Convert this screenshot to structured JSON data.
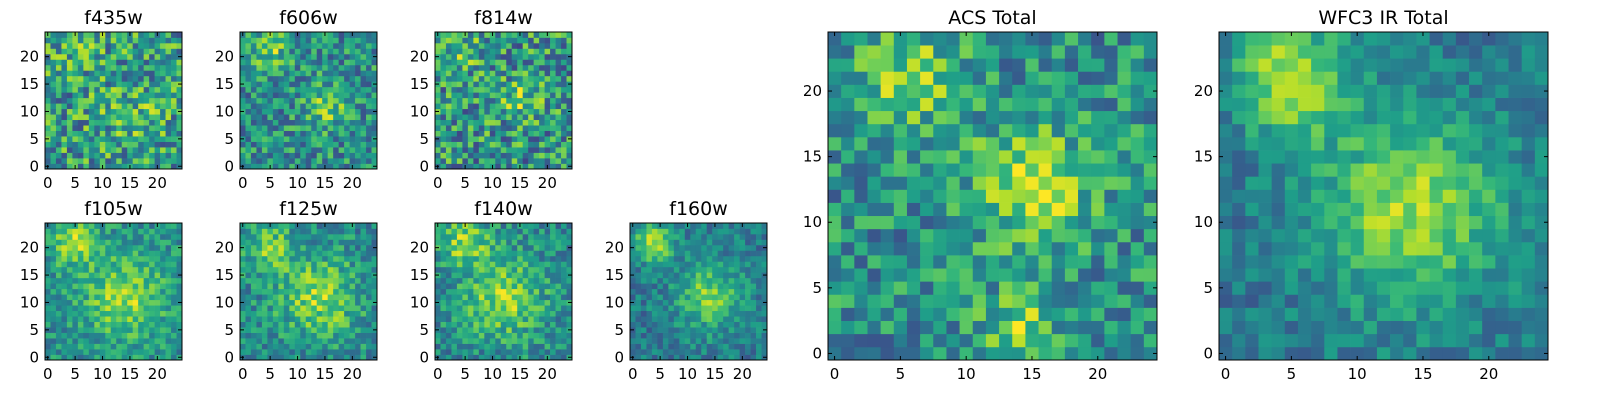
{
  "colormap": "viridis",
  "colormap_stops": [
    "#440154",
    "#482777",
    "#3e4a89",
    "#31688e",
    "#26828e",
    "#1f9e89",
    "#35b779",
    "#6ece58",
    "#b5de2b",
    "#fde725"
  ],
  "chart_data": [
    {
      "type": "heatmap",
      "title": "f435w",
      "xticks": [
        "0",
        "5",
        "10",
        "15",
        "20"
      ],
      "yticks": [
        "0",
        "5",
        "10",
        "15",
        "20"
      ],
      "xlim": [
        0,
        25
      ],
      "ylim": [
        0,
        25
      ],
      "grid_size": 25,
      "seed": 11,
      "noise": 0.32,
      "base": 0.55,
      "blobs": [
        [
          15,
          10,
          4,
          0.12
        ],
        [
          6,
          21,
          3,
          0.08
        ]
      ]
    },
    {
      "type": "heatmap",
      "title": "f606w",
      "xticks": [
        "0",
        "5",
        "10",
        "15",
        "20"
      ],
      "yticks": [
        "0",
        "5",
        "10",
        "15",
        "20"
      ],
      "xlim": [
        0,
        25
      ],
      "ylim": [
        0,
        25
      ],
      "grid_size": 25,
      "seed": 23,
      "noise": 0.26,
      "base": 0.5,
      "blobs": [
        [
          15,
          11,
          2.5,
          0.3
        ],
        [
          5,
          21,
          2.5,
          0.25
        ]
      ]
    },
    {
      "type": "heatmap",
      "title": "f814w",
      "xticks": [
        "0",
        "5",
        "10",
        "15",
        "20"
      ],
      "yticks": [
        "0",
        "5",
        "10",
        "15",
        "20"
      ],
      "xlim": [
        0,
        25
      ],
      "ylim": [
        0,
        25
      ],
      "grid_size": 25,
      "seed": 37,
      "noise": 0.32,
      "base": 0.52,
      "blobs": [
        [
          15,
          12,
          2.5,
          0.25
        ],
        [
          5,
          21,
          2.5,
          0.2
        ]
      ]
    },
    {
      "type": "heatmap",
      "title": "f105w",
      "xticks": [
        "0",
        "5",
        "10",
        "15",
        "20"
      ],
      "yticks": [
        "0",
        "5",
        "10",
        "15",
        "20"
      ],
      "xlim": [
        0,
        25
      ],
      "ylim": [
        0,
        25
      ],
      "grid_size": 25,
      "seed": 41,
      "noise": 0.18,
      "base": 0.5,
      "blobs": [
        [
          14,
          11,
          5,
          0.35
        ],
        [
          5,
          21,
          3,
          0.35
        ]
      ]
    },
    {
      "type": "heatmap",
      "title": "f125w",
      "xticks": [
        "0",
        "5",
        "10",
        "15",
        "20"
      ],
      "yticks": [
        "0",
        "5",
        "10",
        "15",
        "20"
      ],
      "xlim": [
        0,
        25
      ],
      "ylim": [
        0,
        25
      ],
      "grid_size": 25,
      "seed": 53,
      "noise": 0.2,
      "base": 0.48,
      "blobs": [
        [
          14,
          11,
          5,
          0.35
        ],
        [
          5,
          20,
          3,
          0.3
        ]
      ]
    },
    {
      "type": "heatmap",
      "title": "f140w",
      "xticks": [
        "0",
        "5",
        "10",
        "15",
        "20"
      ],
      "yticks": [
        "0",
        "5",
        "10",
        "15",
        "20"
      ],
      "xlim": [
        0,
        25
      ],
      "ylim": [
        0,
        25
      ],
      "grid_size": 25,
      "seed": 67,
      "noise": 0.2,
      "base": 0.48,
      "blobs": [
        [
          12,
          11,
          5,
          0.35
        ],
        [
          5,
          21,
          3,
          0.35
        ]
      ]
    },
    {
      "type": "heatmap",
      "title": "f160w",
      "xticks": [
        "0",
        "5",
        "10",
        "15",
        "20"
      ],
      "yticks": [
        "0",
        "5",
        "10",
        "15",
        "20"
      ],
      "xlim": [
        0,
        25
      ],
      "ylim": [
        0,
        25
      ],
      "grid_size": 25,
      "seed": 79,
      "noise": 0.16,
      "base": 0.42,
      "blobs": [
        [
          14,
          11,
          4,
          0.38
        ],
        [
          4,
          21,
          2.5,
          0.45
        ]
      ]
    },
    {
      "type": "heatmap",
      "title": "ACS Total",
      "xticks": [
        "0",
        "5",
        "10",
        "15",
        "20"
      ],
      "yticks": [
        "0",
        "5",
        "10",
        "15",
        "20"
      ],
      "xlim": [
        0,
        25
      ],
      "ylim": [
        0,
        25
      ],
      "grid_size": 25,
      "seed": 97,
      "noise": 0.24,
      "base": 0.5,
      "blobs": [
        [
          15,
          13,
          3,
          0.4
        ],
        [
          6,
          21,
          2.5,
          0.35
        ],
        [
          14,
          2,
          2,
          0.3
        ]
      ]
    },
    {
      "type": "heatmap",
      "title": "WFC3 IR Total",
      "xticks": [
        "0",
        "5",
        "10",
        "15",
        "20"
      ],
      "yticks": [
        "0",
        "5",
        "10",
        "15",
        "20"
      ],
      "xlim": [
        0,
        25
      ],
      "ylim": [
        0,
        25
      ],
      "grid_size": 25,
      "seed": 113,
      "noise": 0.14,
      "base": 0.4,
      "blobs": [
        [
          14,
          11,
          5,
          0.45
        ],
        [
          5,
          21,
          3,
          0.5
        ]
      ]
    }
  ]
}
